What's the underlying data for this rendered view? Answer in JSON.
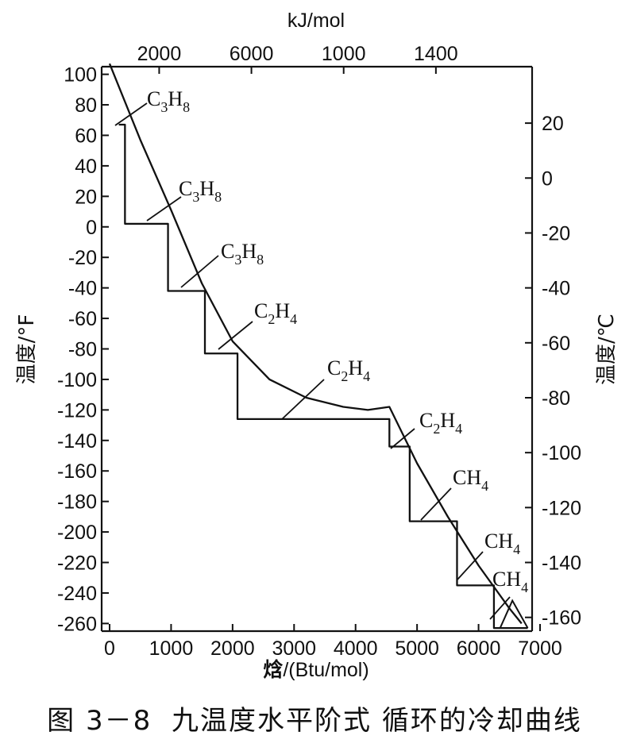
{
  "caption": {
    "figure": "图 3－8",
    "title": "九温度水平阶式 循环的冷却曲线"
  },
  "chart_data": {
    "type": "line",
    "title": "",
    "top_axis_label": "kJ/mol",
    "top_tick_labels": [
      "2000",
      "6000",
      "1000",
      "1400"
    ],
    "xlabel_bold": "焓",
    "xlabel_rest": "/(Btu/mol)",
    "ylabel_left": "温度/°F",
    "ylabel_right": "温度/℃",
    "xlim": [
      0,
      7000
    ],
    "ylim_f": [
      -265,
      105
    ],
    "x_ticks": [
      0,
      1000,
      2000,
      3000,
      4000,
      5000,
      6000,
      7000
    ],
    "y_ticks_f": [
      100,
      80,
      60,
      40,
      20,
      0,
      -20,
      -40,
      -60,
      -80,
      -100,
      -120,
      -140,
      -160,
      -180,
      -200,
      -220,
      -240,
      -260
    ],
    "y_ticks_c": [
      20,
      0,
      -20,
      -40,
      -60,
      -80,
      -100,
      -120,
      -140,
      -160
    ],
    "grid": false,
    "series": [
      {
        "role": "cooling-curve",
        "x": [
          0,
          500,
          1000,
          1500,
          2000,
          2600,
          3200,
          3800,
          4200,
          4550,
          5000,
          5500,
          6000,
          6500,
          6700
        ],
        "y": [
          107,
          57,
          11,
          -37,
          -75,
          -100,
          -112,
          -118,
          -120,
          -118,
          -155,
          -190,
          -222,
          -250,
          -260
        ]
      },
      {
        "role": "refrigerant-levels",
        "x": [
          150,
          250,
          250,
          950,
          950,
          1550,
          1550,
          2080,
          2080,
          4550,
          4550,
          4880,
          4880,
          5650,
          5650,
          6250,
          6250,
          6800
        ],
        "y": [
          67,
          67,
          2,
          2,
          -42,
          -42,
          -83,
          -83,
          -126,
          -126,
          -144,
          -144,
          -193,
          -193,
          -235,
          -235,
          -263,
          -263
        ]
      }
    ],
    "annotations": [
      {
        "text": "C",
        "sub1": "3",
        "mid": "H",
        "sub2": "8"
      },
      {
        "text": "C",
        "sub1": "3",
        "mid": "H",
        "sub2": "8"
      },
      {
        "text": "C",
        "sub1": "3",
        "mid": "H",
        "sub2": "8"
      },
      {
        "text": "C",
        "sub1": "2",
        "mid": "H",
        "sub2": "4"
      },
      {
        "text": "C",
        "sub1": "2",
        "mid": "H",
        "sub2": "4"
      },
      {
        "text": "C",
        "sub1": "2",
        "mid": "H",
        "sub2": "4"
      },
      {
        "text": "CH",
        "sub1": "4",
        "mid": "",
        "sub2": ""
      },
      {
        "text": "CH",
        "sub1": "4",
        "mid": "",
        "sub2": ""
      },
      {
        "text": "CH",
        "sub1": "4",
        "mid": "",
        "sub2": ""
      }
    ]
  }
}
